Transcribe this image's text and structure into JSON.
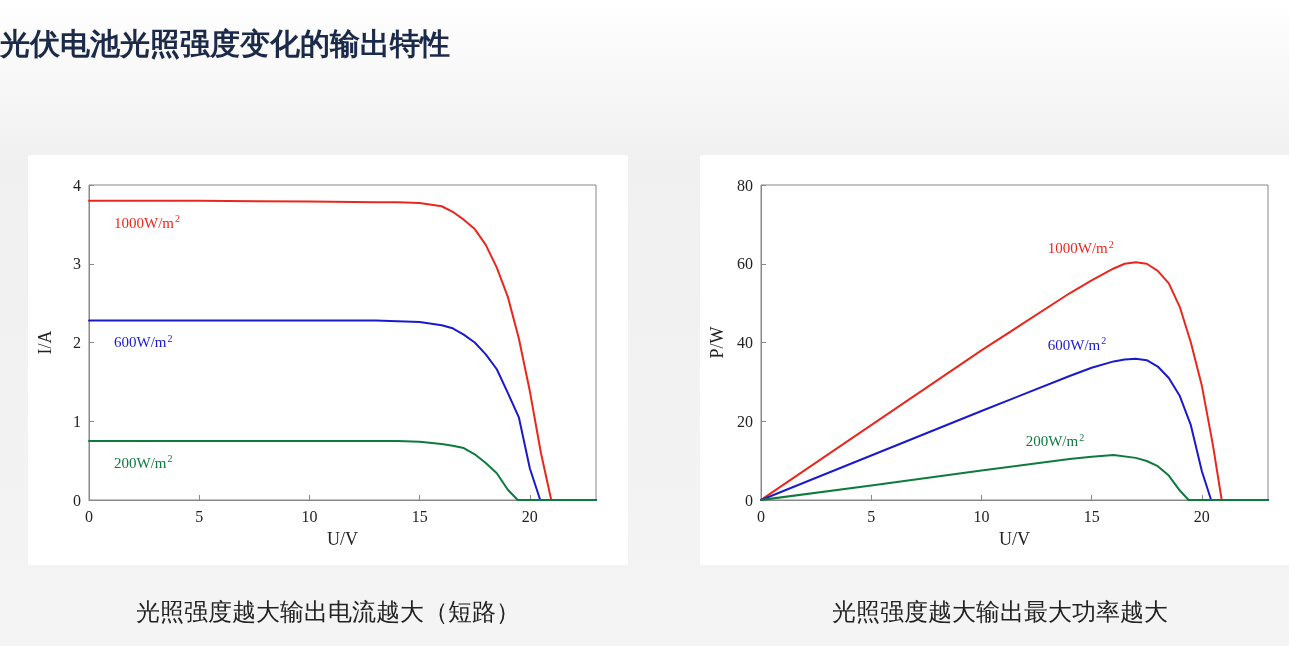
{
  "chart_data": [
    {
      "type": "line",
      "title": "光伏电池光照强度变化的输出特性",
      "xlabel": "U/V",
      "ylabel": "I/A",
      "xlim": [
        0,
        23
      ],
      "xticks": [
        0,
        5,
        10,
        15,
        20
      ],
      "ylim": [
        0,
        4
      ],
      "yticks": [
        0,
        1,
        2,
        3,
        4
      ],
      "grid": false,
      "legend": false,
      "marker": "none",
      "line_style": "solid",
      "annotations": [
        "光照强度越大输出电流越大（短路）"
      ],
      "series": [
        {
          "name": "1000W/m$^{2}$",
          "color": "#e8281e",
          "x": [
            0,
            5,
            10,
            13,
            14,
            15,
            16,
            16.5,
            17,
            17.5,
            18,
            18.5,
            19,
            19.5,
            20,
            20.5,
            20.97,
            23
          ],
          "values": [
            3.8,
            3.8,
            3.79,
            3.78,
            3.78,
            3.77,
            3.73,
            3.66,
            3.56,
            3.44,
            3.24,
            2.95,
            2.58,
            2.05,
            1.38,
            0.6,
            0,
            0
          ]
        },
        {
          "name": "600W/m$^{2}$",
          "color": "#1a1acd",
          "x": [
            0,
            5,
            10,
            13,
            14,
            15,
            16,
            16.5,
            17,
            17.5,
            18,
            18.5,
            19,
            19.5,
            20,
            20.47,
            23
          ],
          "values": [
            2.28,
            2.28,
            2.28,
            2.28,
            2.27,
            2.26,
            2.22,
            2.18,
            2.1,
            2.0,
            1.85,
            1.66,
            1.36,
            1.05,
            0.4,
            0,
            0
          ]
        },
        {
          "name": "200W/m$^{2}$",
          "color": "#0e7a3e",
          "x": [
            0,
            5,
            10,
            13,
            14,
            15,
            16,
            16.5,
            17,
            17.5,
            18,
            18.5,
            19,
            19.45,
            23
          ],
          "values": [
            0.75,
            0.75,
            0.75,
            0.75,
            0.75,
            0.74,
            0.71,
            0.69,
            0.66,
            0.58,
            0.47,
            0.34,
            0.13,
            0,
            0
          ]
        }
      ]
    },
    {
      "type": "line",
      "xlabel": "U/V",
      "ylabel": "P/W",
      "xlim": [
        0,
        23
      ],
      "xticks": [
        0,
        5,
        10,
        15,
        20
      ],
      "ylim": [
        0,
        80
      ],
      "yticks": [
        0,
        20,
        40,
        60,
        80
      ],
      "grid": false,
      "legend": false,
      "marker": "none",
      "line_style": "solid",
      "annotations": [
        "光照强度越大输出最大功率越大"
      ],
      "series": [
        {
          "name": "1000W/m$^{2}$",
          "color": "#e8281e",
          "x": [
            0,
            5,
            10,
            14,
            15,
            16,
            16.5,
            17,
            17.5,
            18,
            18.5,
            19,
            19.5,
            20,
            20.5,
            20.9,
            23
          ],
          "values": [
            0,
            19,
            38,
            52.5,
            55.8,
            58.8,
            60,
            60.4,
            60,
            58.2,
            55,
            49,
            40,
            29,
            14,
            0,
            0
          ]
        },
        {
          "name": "600W/m$^{2}$",
          "color": "#1a1acd",
          "x": [
            0,
            5,
            10,
            14,
            15,
            16,
            16.5,
            17,
            17.5,
            18,
            18.5,
            19,
            19.5,
            20,
            20.42,
            23
          ],
          "values": [
            0,
            11.3,
            22.6,
            31.5,
            33.6,
            35.2,
            35.7,
            35.9,
            35.5,
            33.9,
            31,
            26.4,
            19,
            7.3,
            0,
            0
          ]
        },
        {
          "name": "200W/m$^{2}$",
          "color": "#0e7a3e",
          "x": [
            0,
            5,
            10,
            14,
            15,
            16,
            17,
            17.5,
            18,
            18.5,
            19,
            19.4,
            23
          ],
          "values": [
            0,
            3.7,
            7.5,
            10.4,
            11,
            11.4,
            10.7,
            9.9,
            8.6,
            6.2,
            2.4,
            0,
            0
          ]
        }
      ]
    }
  ]
}
